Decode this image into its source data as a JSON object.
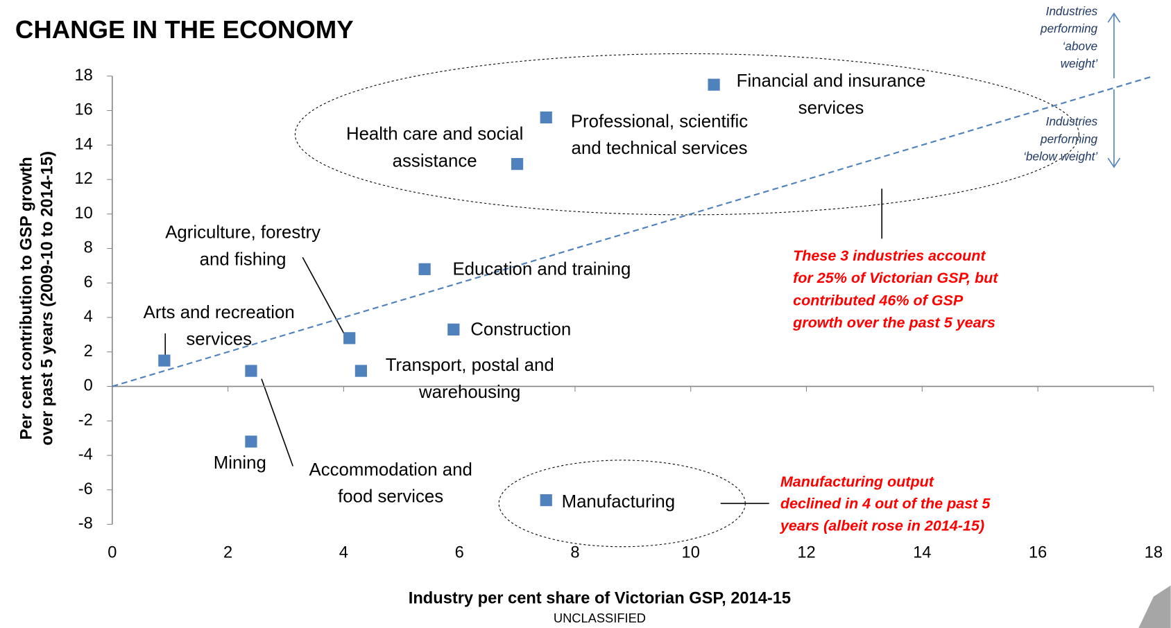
{
  "chart_data": {
    "type": "scatter",
    "title": "CHANGE IN THE ECONOMY",
    "x_label": "Industry per cent share of Victorian GSP, 2014-15",
    "y_label": [
      "Per cent contribution to GSP growth",
      "over past 5 years (2009-10 to 2014-15)"
    ],
    "footer": "UNCLASSIFIED",
    "color": "#4f81bd",
    "xlim": [
      0,
      18
    ],
    "xticks": [
      0,
      2,
      4,
      6,
      8,
      10,
      12,
      14,
      16,
      18
    ],
    "ylim": [
      -8,
      18
    ],
    "yticks": [
      -8,
      -6,
      -4,
      -2,
      0,
      2,
      4,
      6,
      8,
      10,
      12,
      14,
      16,
      18
    ],
    "x": [
      0.9,
      2.4,
      2.4,
      4.1,
      4.3,
      5.4,
      5.9,
      7.0,
      7.5,
      7.5,
      10.4
    ],
    "y": [
      1.5,
      0.9,
      -3.2,
      2.8,
      0.9,
      6.8,
      3.3,
      12.9,
      15.6,
      -6.6,
      17.5
    ],
    "labels": [
      [
        "Arts and recreation",
        "services"
      ],
      [
        "Accommodation and",
        "food services"
      ],
      [
        "Mining"
      ],
      [
        "Agriculture, forestry",
        "and fishing"
      ],
      [
        "Transport, postal and",
        "warehousing"
      ],
      [
        "Education and training"
      ],
      [
        "Construction"
      ],
      [
        "Health care and social",
        "assistance"
      ],
      [
        "Professional, scientific",
        "and technical services"
      ],
      [
        "Manufacturing"
      ],
      [
        "Financial and insurance",
        "services"
      ]
    ],
    "reference_line": {
      "x": [
        0,
        18
      ],
      "y": [
        0,
        18
      ]
    },
    "annotations": [
      [
        "These 3 industries account",
        "for 25% of Victorian GSP, but",
        "contributed 46% of GSP",
        "growth over the past 5 years"
      ],
      [
        "Manufacturing output",
        "declined in 4 out of the past 5",
        "years (albeit rose in 2014-15)"
      ]
    ],
    "side_notes": [
      [
        "Industries",
        "performing",
        "‘above",
        "weight’"
      ],
      [
        "Industries",
        "performing",
        "‘below weight’"
      ]
    ]
  }
}
